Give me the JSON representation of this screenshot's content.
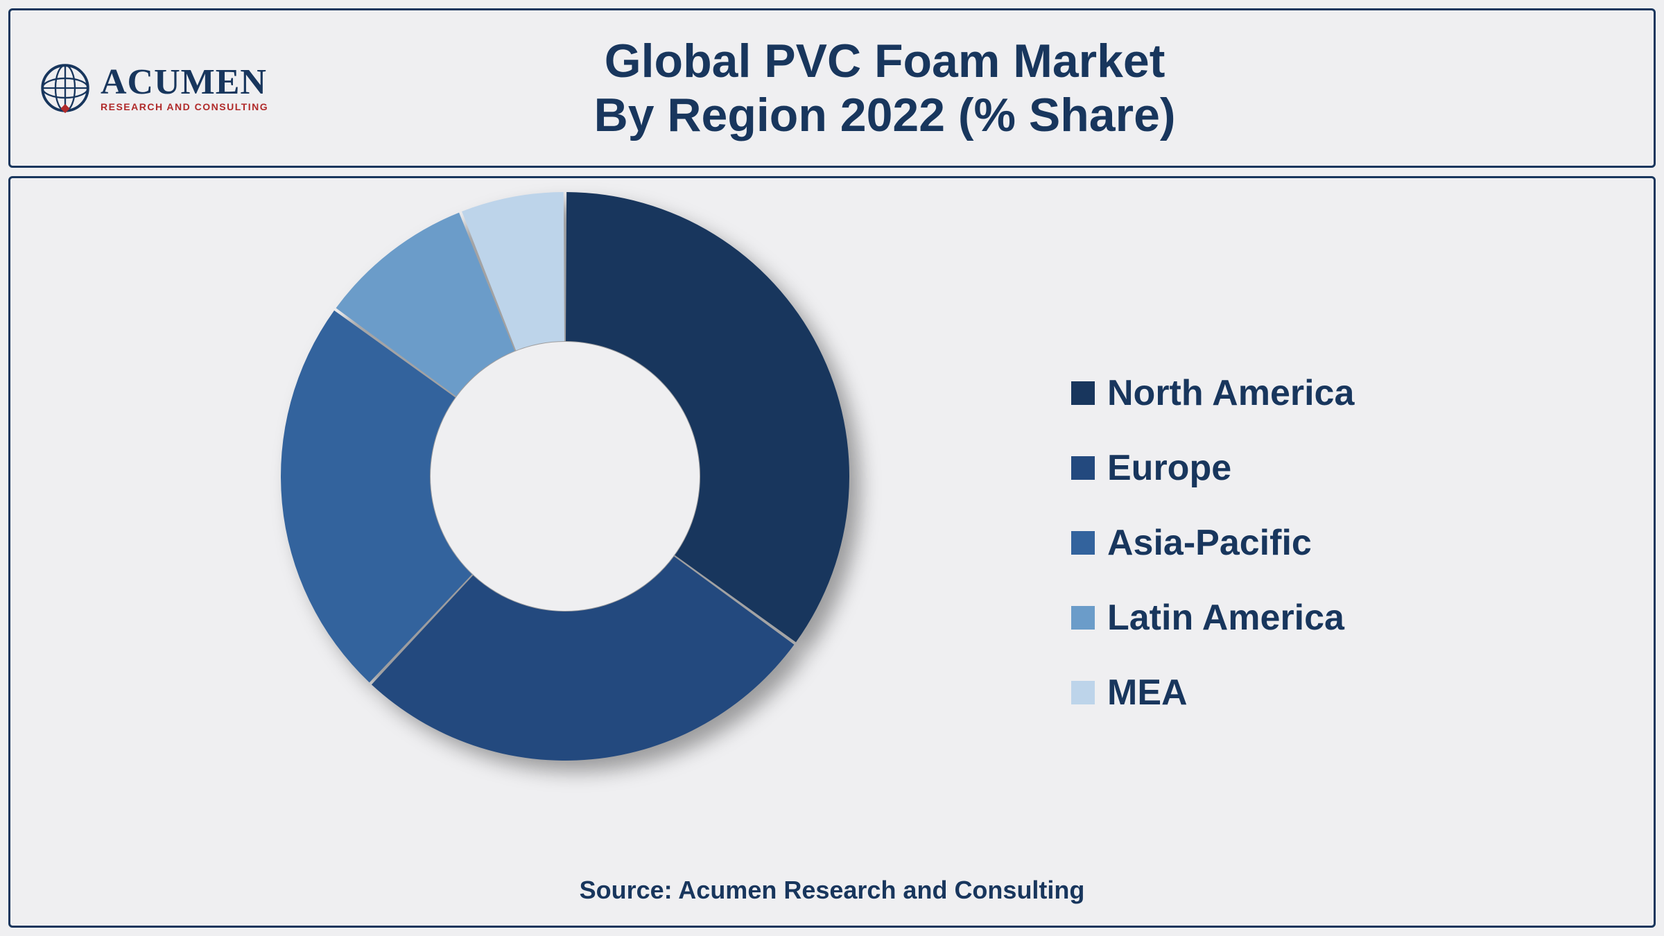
{
  "brand": {
    "name": "ACUMEN",
    "tagline": "RESEARCH AND CONSULTING",
    "name_color": "#18365d",
    "tagline_color": "#b02a2a",
    "globe_stroke": "#18365d",
    "globe_accent": "#b02a2a"
  },
  "title": {
    "line1": "Global PVC Foam Market",
    "line2": "By Region 2022 (% Share)",
    "color": "#18365d",
    "fontsize": 68
  },
  "chart": {
    "type": "donut",
    "outer_radius": 410,
    "inner_radius": 195,
    "background_color": "#efeff1",
    "border_color": "#18365d",
    "shadow_color": "rgba(0,0,0,0.35)",
    "series": [
      {
        "label": "North America",
        "value": 35,
        "color": "#18365d"
      },
      {
        "label": "Europe",
        "value": 27,
        "color": "#23497e"
      },
      {
        "label": "Asia-Pacific",
        "value": 23,
        "color": "#33639d"
      },
      {
        "label": "Latin America",
        "value": 9,
        "color": "#6b9cc9"
      },
      {
        "label": "MEA",
        "value": 6,
        "color": "#bdd4ea"
      }
    ]
  },
  "legend": {
    "fontsize": 52,
    "font_color": "#18365d",
    "swatch_size": 34
  },
  "source": {
    "text": "Source: Acumen Research and Consulting",
    "fontsize": 36,
    "color": "#18365d"
  }
}
